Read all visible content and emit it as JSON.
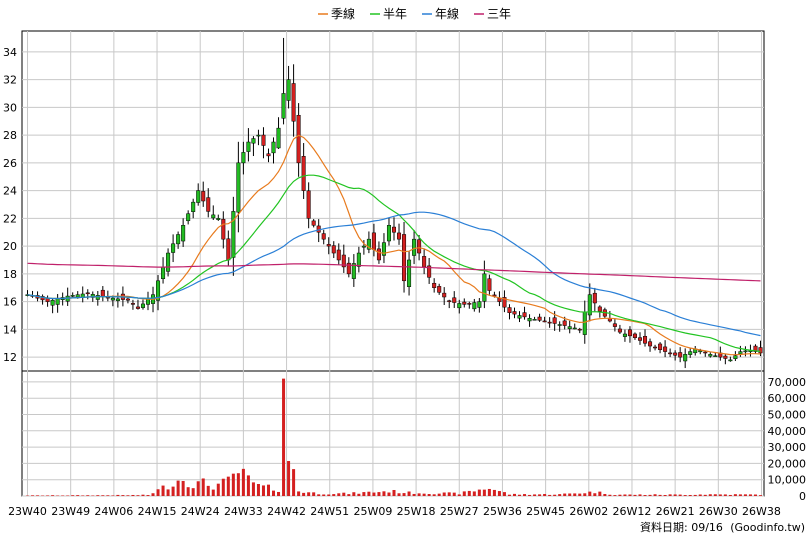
{
  "legend": {
    "items": [
      {
        "label": "季線",
        "color": "#e87b1e"
      },
      {
        "label": "半年",
        "color": "#22c422"
      },
      {
        "label": "年線",
        "color": "#2a7fd6"
      },
      {
        "label": "三年",
        "color": "#c0206a"
      }
    ]
  },
  "footer": {
    "date_label": "資料日期: 09/16",
    "source": "(Goodinfo.tw)"
  },
  "colors": {
    "up": "#22bb22",
    "down": "#d42020",
    "volume": "#d42020",
    "grid": "#c8c8c8",
    "axis": "#000000"
  },
  "chart_data": [
    {
      "type": "candlestick",
      "title": "",
      "x_categories": [
        "23W40",
        "23W49",
        "24W06",
        "24W15",
        "24W24",
        "24W33",
        "24W42",
        "24W51",
        "25W09",
        "25W18",
        "25W27",
        "25W36",
        "25W45",
        "26W02",
        "26W12",
        "26W21",
        "26W30",
        "26W38"
      ],
      "ylim": [
        11,
        35.5
      ],
      "yticks": [
        12,
        14,
        16,
        18,
        20,
        22,
        24,
        26,
        28,
        30,
        32,
        34
      ],
      "grid": true,
      "legend_position": "top-center",
      "close_keypoints": [
        [
          0,
          16.5
        ],
        [
          4,
          16.0
        ],
        [
          8,
          16.4
        ],
        [
          12,
          16.6
        ],
        [
          16,
          16.3
        ],
        [
          20,
          16.1
        ],
        [
          22,
          15.5
        ],
        [
          25,
          16.5
        ],
        [
          28,
          19.5
        ],
        [
          31,
          21.5
        ],
        [
          34,
          24.0
        ],
        [
          36,
          22.5
        ],
        [
          38,
          22.0
        ],
        [
          40,
          19.0
        ],
        [
          42,
          26.0
        ],
        [
          44,
          27.5
        ],
        [
          46,
          28.0
        ],
        [
          48,
          26.5
        ],
        [
          50,
          28.5
        ],
        [
          51,
          31.0
        ],
        [
          52,
          32.0
        ],
        [
          54,
          26.0
        ],
        [
          56,
          22.0
        ],
        [
          58,
          21.0
        ],
        [
          60,
          20.0
        ],
        [
          62,
          19.0
        ],
        [
          64,
          18.0
        ],
        [
          66,
          19.5
        ],
        [
          68,
          20.5
        ],
        [
          70,
          19.0
        ],
        [
          72,
          21.5
        ],
        [
          74,
          20.5
        ],
        [
          75,
          17.5
        ],
        [
          77,
          20.5
        ],
        [
          79,
          18.5
        ],
        [
          81,
          17.0
        ],
        [
          84,
          16.0
        ],
        [
          87,
          15.8
        ],
        [
          90,
          16.0
        ],
        [
          91,
          18.0
        ],
        [
          92,
          16.8
        ],
        [
          94,
          16.0
        ],
        [
          96,
          15.2
        ],
        [
          100,
          14.8
        ],
        [
          104,
          14.5
        ],
        [
          108,
          14.2
        ],
        [
          110,
          14.0
        ],
        [
          112,
          16.5
        ],
        [
          114,
          15.3
        ],
        [
          116,
          14.6
        ],
        [
          118,
          13.8
        ],
        [
          121,
          13.4
        ],
        [
          124,
          12.8
        ],
        [
          127,
          12.4
        ],
        [
          130,
          12.0
        ],
        [
          133,
          12.6
        ],
        [
          136,
          12.2
        ],
        [
          138,
          12.0
        ],
        [
          140,
          11.8
        ],
        [
          142,
          12.4
        ],
        [
          144,
          12.5
        ],
        [
          146,
          12.3
        ]
      ],
      "series": [
        {
          "name": "季線",
          "key": "ma13",
          "color": "#e87b1e"
        },
        {
          "name": "半年",
          "key": "ma26",
          "color": "#22c422"
        },
        {
          "name": "年線",
          "key": "ma52",
          "color": "#2a7fd6"
        },
        {
          "name": "三年",
          "key": "ma156",
          "color": "#c0206a"
        }
      ]
    },
    {
      "type": "bar",
      "title": "",
      "ylim": [
        0,
        73000
      ],
      "yticks": [
        0,
        10000,
        20000,
        30000,
        40000,
        50000,
        60000,
        70000
      ],
      "ytick_labels": [
        "0",
        "10,000",
        "20,000",
        "30,000",
        "40,000",
        "50,000",
        "60,000",
        "70,000"
      ],
      "grid": true,
      "volume_keypoints": [
        [
          0,
          300
        ],
        [
          10,
          400
        ],
        [
          20,
          500
        ],
        [
          24,
          600
        ],
        [
          31,
          11000
        ],
        [
          33,
          7000
        ],
        [
          35,
          8000
        ],
        [
          37,
          6000
        ],
        [
          40,
          9000
        ],
        [
          42,
          15000
        ],
        [
          44,
          10000
        ],
        [
          46,
          6000
        ],
        [
          50,
          4000
        ],
        [
          51,
          72000
        ],
        [
          52,
          18000
        ],
        [
          53,
          18000
        ],
        [
          54,
          3000
        ],
        [
          58,
          1500
        ],
        [
          64,
          1500
        ],
        [
          72,
          3000
        ],
        [
          76,
          2000
        ],
        [
          86,
          1500
        ],
        [
          92,
          5000
        ],
        [
          96,
          1000
        ],
        [
          106,
          1000
        ],
        [
          113,
          2500
        ],
        [
          117,
          800
        ],
        [
          124,
          800
        ],
        [
          130,
          800
        ],
        [
          136,
          1000
        ],
        [
          146,
          800
        ]
      ]
    }
  ]
}
